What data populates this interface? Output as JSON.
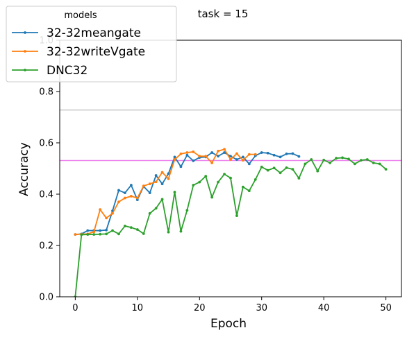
{
  "chart_data": {
    "type": "line",
    "title": "task = 15",
    "xlabel": "Epoch",
    "ylabel": "Accuracy",
    "xlim": [
      -2.5,
      52.5
    ],
    "ylim": [
      0,
      1.0
    ],
    "x_ticks": [
      0,
      10,
      20,
      30,
      40,
      50
    ],
    "y_ticks": [
      0.0,
      0.2,
      0.4,
      0.6,
      0.8,
      1.0
    ],
    "legend": {
      "title": "models",
      "placement": "upper-left"
    },
    "reference_lines": [
      {
        "y": 0.728,
        "color": "#c8c8c8"
      },
      {
        "y": 0.531,
        "color": "#ee82ee"
      }
    ],
    "series": [
      {
        "name": "32-32meangate",
        "color": "#1f77b4",
        "x": [
          0,
          1,
          2,
          3,
          4,
          5,
          6,
          7,
          8,
          9,
          10,
          11,
          12,
          13,
          14,
          15,
          16,
          17,
          18,
          19,
          20,
          21,
          22,
          23,
          24,
          25,
          26,
          27,
          28,
          29,
          30,
          31,
          32,
          33,
          34,
          35,
          36
        ],
        "y": [
          0.243,
          0.245,
          0.258,
          0.258,
          0.258,
          0.26,
          0.335,
          0.415,
          0.405,
          0.435,
          0.378,
          0.43,
          0.405,
          0.473,
          0.44,
          0.48,
          0.545,
          0.507,
          0.552,
          0.53,
          0.543,
          0.545,
          0.562,
          0.548,
          0.562,
          0.548,
          0.535,
          0.545,
          0.518,
          0.55,
          0.562,
          0.56,
          0.552,
          0.545,
          0.557,
          0.558,
          0.547
        ]
      },
      {
        "name": "32-32writeVgate",
        "color": "#ff7f0e",
        "x": [
          0,
          1,
          2,
          3,
          4,
          5,
          6,
          7,
          8,
          9,
          10,
          11,
          12,
          13,
          14,
          15,
          16,
          17,
          18,
          19,
          20,
          21,
          22,
          23,
          24,
          25,
          26,
          27,
          28,
          29
        ],
        "y": [
          0.243,
          0.244,
          0.245,
          0.253,
          0.34,
          0.307,
          0.325,
          0.37,
          0.385,
          0.392,
          0.385,
          0.432,
          0.44,
          0.448,
          0.485,
          0.46,
          0.535,
          0.557,
          0.562,
          0.565,
          0.548,
          0.548,
          0.522,
          0.568,
          0.575,
          0.535,
          0.558,
          0.532,
          0.555,
          0.555
        ]
      },
      {
        "name": "DNC32",
        "color": "#2ca02c",
        "x": [
          0,
          1,
          2,
          3,
          4,
          5,
          6,
          7,
          8,
          9,
          10,
          11,
          12,
          13,
          14,
          15,
          16,
          17,
          18,
          19,
          20,
          21,
          22,
          23,
          24,
          25,
          26,
          27,
          28,
          29,
          30,
          31,
          32,
          33,
          34,
          35,
          36,
          37,
          38,
          39,
          40,
          41,
          42,
          43,
          44,
          45,
          46,
          47,
          48,
          49,
          50
        ],
        "y": [
          0.0,
          0.242,
          0.243,
          0.243,
          0.244,
          0.245,
          0.258,
          0.245,
          0.276,
          0.27,
          0.262,
          0.246,
          0.325,
          0.345,
          0.38,
          0.252,
          0.408,
          0.255,
          0.337,
          0.435,
          0.447,
          0.47,
          0.388,
          0.447,
          0.478,
          0.463,
          0.316,
          0.428,
          0.413,
          0.457,
          0.506,
          0.493,
          0.502,
          0.483,
          0.503,
          0.497,
          0.462,
          0.518,
          0.535,
          0.49,
          0.533,
          0.522,
          0.54,
          0.542,
          0.537,
          0.518,
          0.532,
          0.535,
          0.522,
          0.518,
          0.497
        ]
      }
    ]
  }
}
